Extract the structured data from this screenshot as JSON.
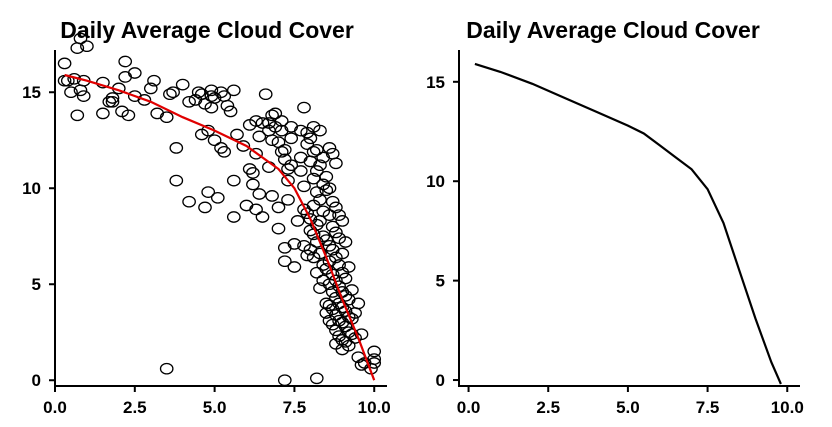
{
  "chart_data": [
    {
      "type": "scatter",
      "title": "Daily Average Cloud Cover",
      "xlabel": "",
      "ylabel": "",
      "xlim": [
        0,
        10.4
      ],
      "ylim": [
        -0.3,
        17.2
      ],
      "xticks": [
        "0.0",
        "2.5",
        "5.0",
        "7.5",
        "10.0"
      ],
      "xtick_values": [
        0,
        2.5,
        5,
        7.5,
        10
      ],
      "yticks": [
        "0",
        "5",
        "10",
        "15"
      ],
      "ytick_values": [
        0,
        5,
        10,
        15
      ],
      "grid": false,
      "point_color": "#000000",
      "points": [
        [
          0.3,
          16.5
        ],
        [
          0.3,
          15.6
        ],
        [
          0.4,
          15.6
        ],
        [
          0.5,
          15.0
        ],
        [
          0.7,
          17.3
        ],
        [
          0.8,
          17.8
        ],
        [
          0.9,
          15.6
        ],
        [
          1.0,
          17.4
        ],
        [
          0.8,
          15.1
        ],
        [
          0.9,
          14.8
        ],
        [
          0.6,
          15.7
        ],
        [
          0.7,
          13.8
        ],
        [
          1.5,
          15.5
        ],
        [
          1.5,
          13.9
        ],
        [
          1.7,
          14.5
        ],
        [
          1.8,
          14.5
        ],
        [
          1.8,
          14.7
        ],
        [
          2.0,
          15.2
        ],
        [
          2.1,
          14.0
        ],
        [
          2.2,
          15.8
        ],
        [
          2.2,
          16.6
        ],
        [
          2.3,
          13.8
        ],
        [
          2.5,
          16.0
        ],
        [
          2.5,
          14.8
        ],
        [
          2.8,
          14.6
        ],
        [
          3.0,
          15.2
        ],
        [
          3.1,
          15.6
        ],
        [
          3.2,
          13.9
        ],
        [
          3.5,
          13.7
        ],
        [
          3.6,
          14.9
        ],
        [
          3.7,
          15.0
        ],
        [
          3.8,
          12.1
        ],
        [
          3.8,
          10.4
        ],
        [
          4.0,
          15.4
        ],
        [
          4.2,
          14.5
        ],
        [
          4.2,
          9.3
        ],
        [
          4.4,
          14.6
        ],
        [
          4.5,
          15.0
        ],
        [
          4.6,
          12.8
        ],
        [
          4.6,
          14.9
        ],
        [
          4.7,
          14.4
        ],
        [
          4.8,
          13.0
        ],
        [
          4.9,
          15.1
        ],
        [
          4.9,
          14.8
        ],
        [
          5.0,
          14.7
        ],
        [
          4.8,
          9.8
        ],
        [
          4.7,
          9.0
        ],
        [
          5.2,
          12.1
        ],
        [
          5.1,
          9.5
        ],
        [
          5.2,
          15.0
        ],
        [
          5.3,
          14.8
        ],
        [
          5.3,
          11.9
        ],
        [
          5.0,
          12.5
        ],
        [
          4.9,
          14.2
        ],
        [
          5.4,
          14.3
        ],
        [
          5.5,
          14.0
        ],
        [
          5.6,
          15.1
        ],
        [
          5.6,
          10.4
        ],
        [
          5.6,
          8.5
        ],
        [
          5.7,
          12.8
        ],
        [
          5.9,
          12.2
        ],
        [
          6.0,
          9.1
        ],
        [
          6.1,
          13.3
        ],
        [
          6.1,
          11.0
        ],
        [
          6.2,
          10.8
        ],
        [
          6.2,
          10.2
        ],
        [
          6.3,
          13.5
        ],
        [
          6.3,
          11.8
        ],
        [
          6.3,
          8.9
        ],
        [
          6.4,
          12.7
        ],
        [
          6.4,
          9.7
        ],
        [
          6.5,
          8.5
        ],
        [
          6.5,
          13.4
        ],
        [
          6.6,
          14.9
        ],
        [
          6.7,
          13.4
        ],
        [
          6.7,
          13.0
        ],
        [
          6.7,
          11.1
        ],
        [
          6.8,
          9.6
        ],
        [
          6.8,
          13.8
        ],
        [
          6.8,
          12.5
        ],
        [
          6.9,
          13.9
        ],
        [
          6.9,
          13.2
        ],
        [
          7.0,
          12.4
        ],
        [
          7.0,
          9.0
        ],
        [
          7.0,
          7.9
        ],
        [
          7.1,
          13.5
        ],
        [
          7.1,
          13.0
        ],
        [
          7.1,
          11.9
        ],
        [
          7.2,
          12.0
        ],
        [
          7.2,
          11.5
        ],
        [
          7.3,
          11.0
        ],
        [
          7.2,
          6.2
        ],
        [
          7.2,
          6.9
        ],
        [
          7.3,
          9.4
        ],
        [
          7.3,
          10.4
        ],
        [
          7.4,
          13.2
        ],
        [
          7.4,
          12.6
        ],
        [
          7.4,
          11.2
        ],
        [
          7.5,
          5.9
        ],
        [
          7.5,
          7.1
        ],
        [
          7.6,
          8.3
        ],
        [
          7.7,
          13.0
        ],
        [
          7.7,
          10.9
        ],
        [
          7.7,
          11.6
        ],
        [
          7.8,
          14.2
        ],
        [
          7.8,
          10.1
        ],
        [
          7.8,
          8.9
        ],
        [
          7.8,
          7.0
        ],
        [
          7.9,
          12.9
        ],
        [
          7.9,
          12.3
        ],
        [
          7.9,
          8.7
        ],
        [
          7.9,
          6.5
        ],
        [
          8.0,
          12.6
        ],
        [
          8.0,
          11.4
        ],
        [
          8.0,
          8.4
        ],
        [
          8.0,
          7.8
        ],
        [
          8.0,
          6.8
        ],
        [
          8.1,
          13.2
        ],
        [
          8.1,
          11.9
        ],
        [
          8.1,
          10.5
        ],
        [
          8.1,
          9.1
        ],
        [
          8.1,
          7.6
        ],
        [
          8.1,
          6.4
        ],
        [
          8.2,
          12.0
        ],
        [
          8.2,
          10.9
        ],
        [
          8.2,
          9.8
        ],
        [
          8.2,
          8.1
        ],
        [
          8.2,
          7.2
        ],
        [
          8.2,
          5.6
        ],
        [
          8.3,
          13.0
        ],
        [
          8.3,
          11.2
        ],
        [
          8.3,
          9.4
        ],
        [
          8.3,
          8.3
        ],
        [
          8.3,
          6.6
        ],
        [
          8.3,
          4.8
        ],
        [
          8.4,
          11.6
        ],
        [
          8.4,
          10.2
        ],
        [
          8.4,
          8.8
        ],
        [
          8.4,
          7.5
        ],
        [
          8.4,
          6.0
        ],
        [
          8.4,
          5.2
        ],
        [
          8.5,
          10.6
        ],
        [
          8.5,
          9.9
        ],
        [
          8.5,
          7.3
        ],
        [
          8.5,
          5.8
        ],
        [
          8.5,
          4.0
        ],
        [
          8.5,
          3.5
        ],
        [
          8.6,
          12.1
        ],
        [
          8.6,
          10.0
        ],
        [
          8.6,
          8.6
        ],
        [
          8.6,
          7.0
        ],
        [
          8.6,
          6.2
        ],
        [
          8.6,
          5.0
        ],
        [
          8.6,
          3.9
        ],
        [
          8.6,
          3.1
        ],
        [
          8.7,
          11.8
        ],
        [
          8.7,
          9.3
        ],
        [
          8.7,
          8.0
        ],
        [
          8.7,
          6.8
        ],
        [
          8.7,
          5.5
        ],
        [
          8.7,
          4.6
        ],
        [
          8.7,
          3.7
        ],
        [
          8.7,
          2.9
        ],
        [
          8.8,
          11.3
        ],
        [
          8.8,
          9.0
        ],
        [
          8.8,
          7.7
        ],
        [
          8.8,
          6.4
        ],
        [
          8.8,
          5.2
        ],
        [
          8.8,
          4.3
        ],
        [
          8.8,
          3.4
        ],
        [
          8.8,
          2.6
        ],
        [
          8.8,
          1.9
        ],
        [
          8.9,
          8.6
        ],
        [
          8.9,
          7.4
        ],
        [
          8.9,
          6.0
        ],
        [
          8.9,
          4.9
        ],
        [
          8.9,
          4.0
        ],
        [
          8.9,
          3.1
        ],
        [
          8.9,
          2.3
        ],
        [
          9.0,
          8.3
        ],
        [
          9.0,
          6.6
        ],
        [
          9.0,
          5.6
        ],
        [
          9.0,
          4.6
        ],
        [
          9.0,
          3.8
        ],
        [
          9.0,
          3.0
        ],
        [
          9.0,
          2.1
        ],
        [
          9.0,
          1.6
        ],
        [
          9.1,
          7.2
        ],
        [
          9.1,
          5.3
        ],
        [
          9.1,
          4.4
        ],
        [
          9.1,
          3.6
        ],
        [
          9.1,
          2.8
        ],
        [
          9.1,
          2.0
        ],
        [
          9.2,
          5.9
        ],
        [
          9.2,
          4.2
        ],
        [
          9.2,
          3.3
        ],
        [
          9.2,
          2.5
        ],
        [
          9.2,
          1.8
        ],
        [
          9.3,
          4.7
        ],
        [
          9.3,
          3.2
        ],
        [
          9.3,
          2.4
        ],
        [
          9.4,
          3.5
        ],
        [
          9.4,
          2.2
        ],
        [
          9.5,
          4.0
        ],
        [
          9.5,
          1.2
        ],
        [
          9.6,
          2.4
        ],
        [
          9.6,
          0.8
        ],
        [
          9.7,
          0.9
        ],
        [
          9.9,
          0.6
        ],
        [
          10.0,
          1.1
        ],
        [
          10.0,
          1.5
        ],
        [
          10.0,
          0.9
        ],
        [
          3.5,
          0.6
        ],
        [
          7.2,
          0.0
        ],
        [
          8.2,
          0.1
        ]
      ],
      "fit_line": {
        "color": "#e00000",
        "x": [
          0.3,
          1.0,
          2.0,
          3.0,
          4.0,
          5.0,
          6.0,
          7.0,
          7.5,
          8.0,
          8.5,
          9.0,
          9.5,
          10.0
        ],
        "y": [
          15.9,
          15.6,
          15.1,
          14.5,
          13.7,
          13.0,
          12.2,
          11.0,
          10.0,
          8.4,
          6.4,
          4.2,
          2.2,
          0.0
        ]
      }
    },
    {
      "type": "line",
      "title": "Daily Average Cloud Cover",
      "xlabel": "",
      "ylabel": "",
      "xlim": [
        -0.3,
        10.4
      ],
      "ylim": [
        -0.3,
        16.6
      ],
      "xticks": [
        "0.0",
        "2.5",
        "5.0",
        "7.5",
        "10.0"
      ],
      "xtick_values": [
        0,
        2.5,
        5,
        7.5,
        10
      ],
      "yticks": [
        "0",
        "5",
        "10",
        "15"
      ],
      "ytick_values": [
        0,
        5,
        10,
        15
      ],
      "grid": false,
      "line_color": "#000000",
      "x": [
        0.2,
        1.0,
        2.0,
        3.0,
        4.0,
        5.0,
        5.5,
        6.0,
        6.5,
        7.0,
        7.5,
        8.0,
        8.5,
        9.0,
        9.5,
        9.8
      ],
      "y": [
        15.9,
        15.5,
        14.9,
        14.2,
        13.5,
        12.8,
        12.4,
        11.8,
        11.2,
        10.6,
        9.6,
        7.9,
        5.5,
        3.1,
        0.9,
        -0.2
      ]
    }
  ]
}
